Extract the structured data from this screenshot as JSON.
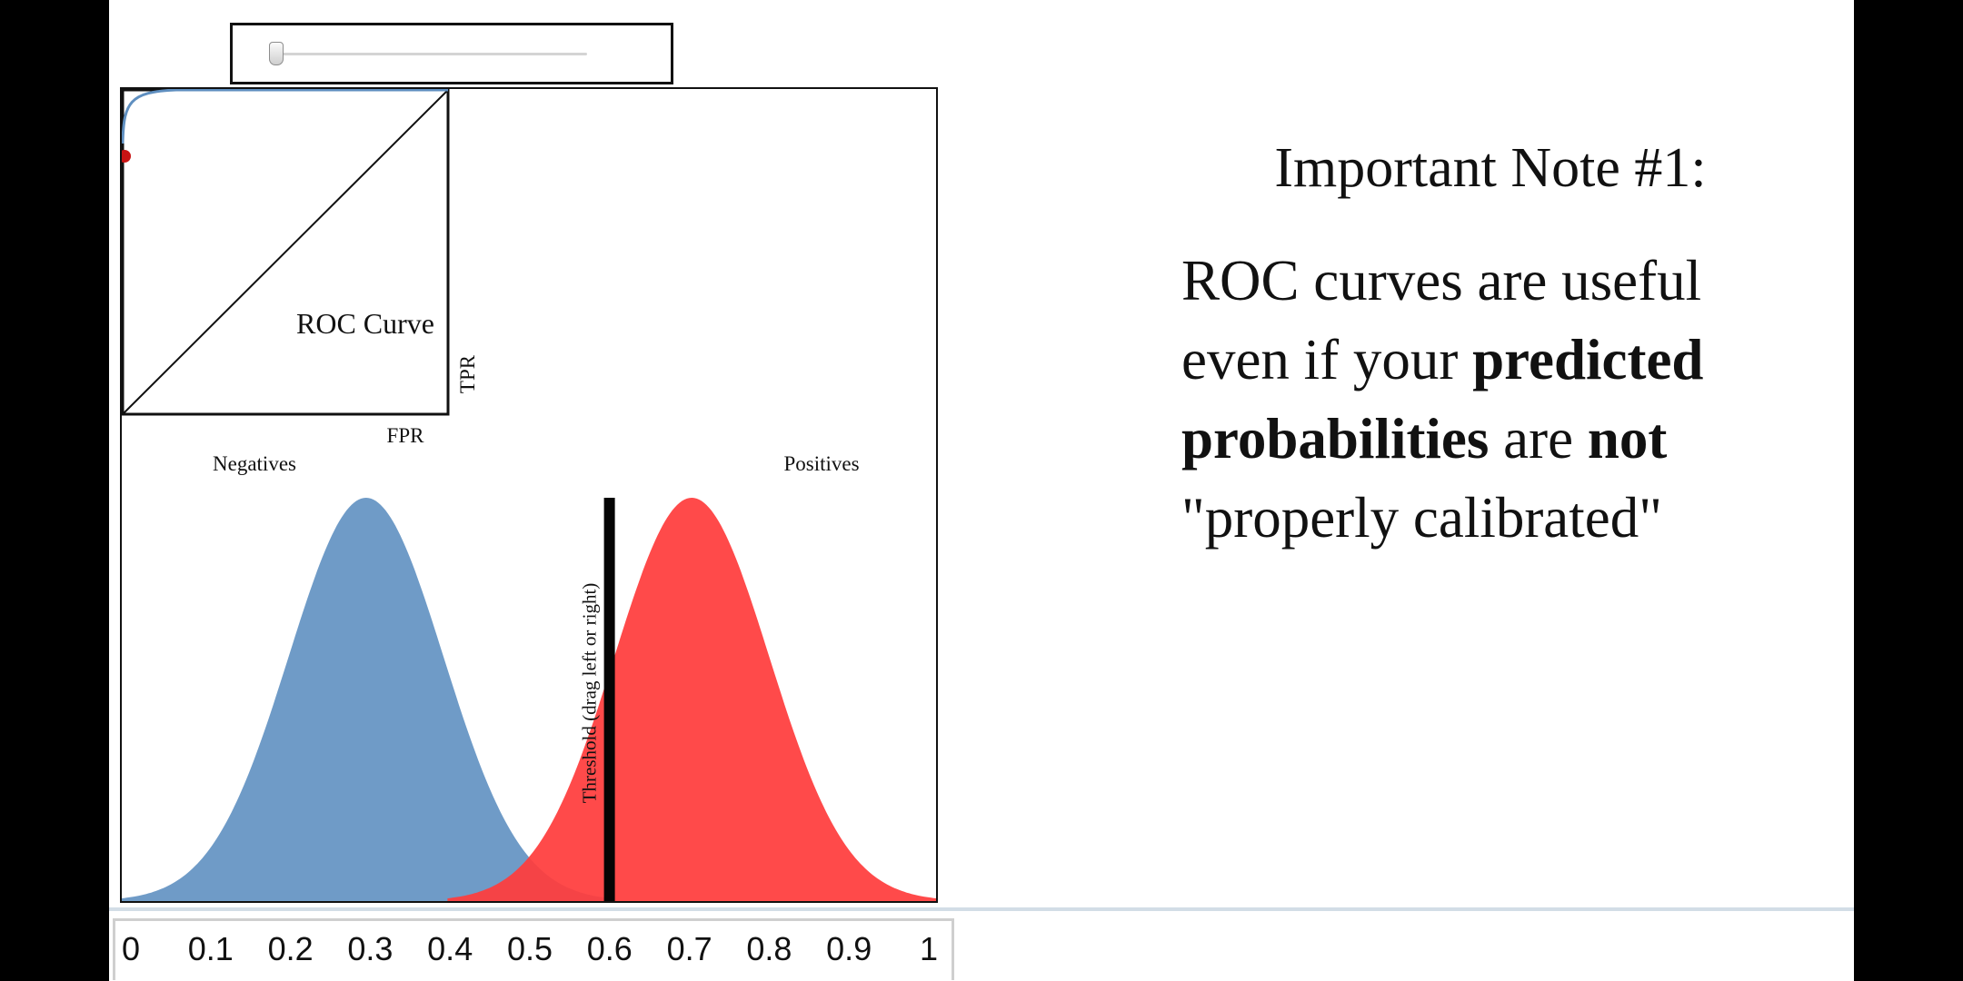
{
  "slider": {
    "value": 0.02
  },
  "note": {
    "title": "Important Note #1:",
    "line1": "ROC curves are useful",
    "line2_a": "even if your ",
    "line2_b": "predicted",
    "line3_a": "probabilities",
    "line3_b": " are ",
    "line3_c": "not",
    "line4": "\"properly calibrated\""
  },
  "chart_data": {
    "type": "area",
    "roc": {
      "title": "ROC Curve",
      "xlabel": "FPR",
      "ylabel": "TPR"
    },
    "labels": {
      "negatives": "Negatives",
      "positives": "Positives",
      "threshold": "Threshold (drag left or right)"
    },
    "x_ticks": [
      "0",
      "0.1",
      "0.2",
      "0.3",
      "0.4",
      "0.5",
      "0.6",
      "0.7",
      "0.8",
      "0.9",
      "1"
    ],
    "xlim": [
      0,
      1
    ],
    "series": [
      {
        "name": "Negatives",
        "mean": 0.3,
        "sd": 0.095,
        "color": "#6f9bc7"
      },
      {
        "name": "Positives",
        "mean": 0.7,
        "sd": 0.095,
        "color": "#ff3c3c"
      }
    ],
    "threshold": 0.6
  }
}
